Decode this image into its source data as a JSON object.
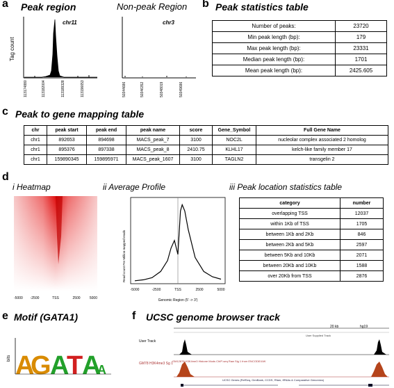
{
  "panel_a": {
    "label": "a",
    "title_peak": "Peak region",
    "title_nonpeak": "Non-peak Region",
    "ylabel": "Tag count",
    "peak_chr": "chr11",
    "nonpeak_chr": "chr3",
    "peak_ticks": [
      "113174880",
      "113182004",
      "113189328",
      "113196653"
    ],
    "nonpeak_ticks": [
      "50344686",
      "50346352",
      "50348019",
      "50349686"
    ]
  },
  "panel_b": {
    "label": "b",
    "title": "Peak statistics table",
    "rows": [
      {
        "k": "Number of peaks:",
        "v": "23720"
      },
      {
        "k": "Min peak length (bp):",
        "v": "179"
      },
      {
        "k": "Max peak length (bp):",
        "v": "23331"
      },
      {
        "k": "Median peak length (bp):",
        "v": "1701"
      },
      {
        "k": "Mean peak length (bp):",
        "v": "2425.605"
      }
    ]
  },
  "panel_c": {
    "label": "c",
    "title": "Peak to gene mapping table",
    "headers": [
      "chr",
      "peak start",
      "peak end",
      "peak name",
      "score",
      "Gene_Symbol",
      "Full Gene Name"
    ],
    "rows": [
      [
        "chr1",
        "892653",
        "894698",
        "MACS_peak_7",
        "3100",
        "NOC2L",
        "nucleolar complex associated 2 homolog"
      ],
      [
        "chr1",
        "895376",
        "897338",
        "MACS_peak_8",
        "2410.75",
        "KLHL17",
        "kelch-like family member 17"
      ],
      [
        "chr1",
        "159890345",
        "159895971",
        "MACS_peak_1607",
        "3100",
        "TAGLN2",
        "transgelin 2"
      ]
    ]
  },
  "panel_d": {
    "label": "d",
    "heatmap_title": "i  Heatmap",
    "heatmap_ticks": [
      "-5000",
      "-2500",
      "TSS",
      "2500",
      "5000"
    ],
    "profile_title": "ii  Average Profile",
    "profile_ylabel": "Read count Per Million mapped reads",
    "profile_xlabel": "Genomic Region (5' -> 3')",
    "profile_ticks": [
      "-5000",
      "-2500",
      "TSS",
      "2500",
      "5000"
    ],
    "table_title": "iii  Peak location statistics table",
    "table_headers": [
      "category",
      "number"
    ],
    "table_rows": [
      [
        "overlapping TSS",
        "12037"
      ],
      [
        "within 1Kb of TSS",
        "1705"
      ],
      [
        "between 1Kb and 2Kb",
        "846"
      ],
      [
        "between 2Kb and 5Kb",
        "2597"
      ],
      [
        "between 5Kb and 10Kb",
        "2071"
      ],
      [
        "between 20Kb and 10Kb",
        "1588"
      ],
      [
        "over 20Kb from TSS",
        "2876"
      ]
    ]
  },
  "panel_e": {
    "label": "e",
    "title": "Motif (GATA1)",
    "ylabel": "bits",
    "letters": [
      "A",
      "G",
      "A",
      "T",
      "A",
      "A"
    ]
  },
  "panel_f": {
    "label": "f",
    "title": "UCSC genome browser track",
    "track1_label": "User Track",
    "track2_label": "GM78 H3K4me3 Sg 1",
    "scale_text": "20 kb",
    "assembly": "hg19",
    "user_track_text": "User Supplied Track",
    "encode_text": "GM12878 H3K4me3 Histone Mods ChIP-seq Raw Sig 1 from ENCODE/UW",
    "genes_text": "UCSC Genes (RefSeq, GenBank, CCDS, Rfam, tRNAs & Comparative Genomics)"
  },
  "chart_data": [
    {
      "type": "line",
      "title": "Average Profile",
      "xlabel": "Genomic Region (5' -> 3')",
      "ylabel": "Read count Per Million mapped reads",
      "x": [
        -5000,
        -4000,
        -3000,
        -2000,
        -1200,
        -800,
        -400,
        0,
        300,
        500,
        800,
        1200,
        2000,
        3000,
        4000,
        5000
      ],
      "y": [
        0.05,
        0.08,
        0.15,
        0.35,
        0.7,
        1.1,
        1.35,
        0.9,
        2.3,
        2.5,
        2.3,
        1.7,
        0.8,
        0.35,
        0.18,
        0.1
      ]
    }
  ]
}
